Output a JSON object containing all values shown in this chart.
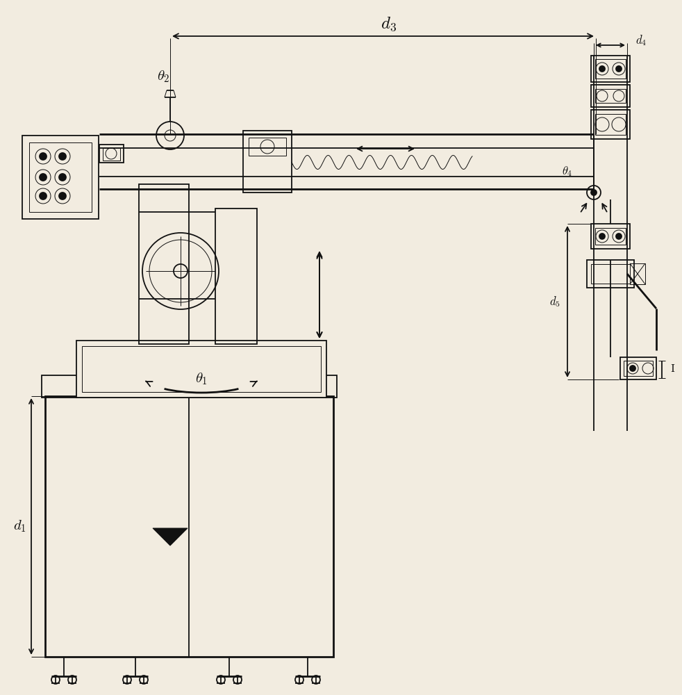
{
  "bg": "#f2ece0",
  "lc": "#111111",
  "lw": 1.3,
  "lw2": 2.0,
  "lw3": 0.7,
  "labels": {
    "d1": "$d_1$",
    "d3": "$d_3$",
    "d4": "$d_4$",
    "d5": "$d_5$",
    "theta1": "$\\theta_1$",
    "theta2": "$\\theta_2$",
    "theta4": "$\\theta_4$"
  },
  "fs": 15,
  "fs_sm": 12
}
